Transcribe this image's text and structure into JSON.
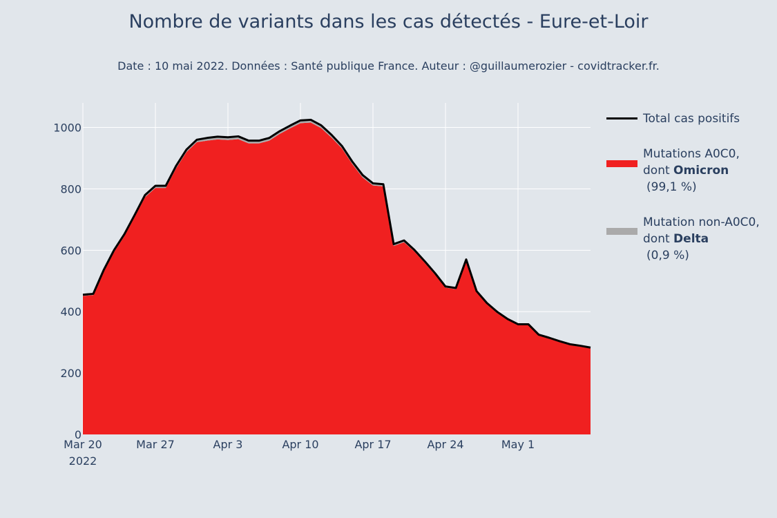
{
  "title": "Nombre de variants dans les cas détectés - Eure-et-Loir",
  "subtitle": "Date : 10 mai 2022. Données : Santé publique France. Auteur : @guillaumerozier - covidtracker.fr.",
  "colors": {
    "background": "#e1e6eb",
    "omicron": "#f02020",
    "delta": "#aaaaaa",
    "total": "#000000",
    "grid": "#ffffff",
    "text": "#2a3f5f"
  },
  "legend": {
    "total": {
      "label": "Total cas positifs"
    },
    "omicron": {
      "line1": "Mutations A0C0,",
      "line2_prefix": "dont ",
      "line2_bold": "Omicron",
      "line3": "(99,1 %)"
    },
    "delta": {
      "line1": "Mutation non-A0C0,",
      "line2_prefix": "dont ",
      "line2_bold": "Delta",
      "line3": "(0,9 %)"
    }
  },
  "chart_data": {
    "type": "area",
    "xlim": [
      "2022-03-20",
      "2022-05-08"
    ],
    "ylim": [
      0,
      1080
    ],
    "x_ticks": [
      {
        "date": "2022-03-20",
        "label": "Mar 20",
        "sublabel": "2022"
      },
      {
        "date": "2022-03-27",
        "label": "Mar 27"
      },
      {
        "date": "2022-04-03",
        "label": "Apr 3"
      },
      {
        "date": "2022-04-10",
        "label": "Apr 10"
      },
      {
        "date": "2022-04-17",
        "label": "Apr 17"
      },
      {
        "date": "2022-04-24",
        "label": "Apr 24"
      },
      {
        "date": "2022-05-01",
        "label": "May 1"
      }
    ],
    "y_ticks": [
      0,
      200,
      400,
      600,
      800,
      1000
    ],
    "grid": true,
    "legend_position": "right",
    "x": [
      "2022-03-20",
      "2022-03-21",
      "2022-03-22",
      "2022-03-23",
      "2022-03-24",
      "2022-03-25",
      "2022-03-26",
      "2022-03-27",
      "2022-03-28",
      "2022-03-29",
      "2022-03-30",
      "2022-03-31",
      "2022-04-01",
      "2022-04-02",
      "2022-04-03",
      "2022-04-04",
      "2022-04-05",
      "2022-04-06",
      "2022-04-07",
      "2022-04-08",
      "2022-04-09",
      "2022-04-10",
      "2022-04-11",
      "2022-04-12",
      "2022-04-13",
      "2022-04-14",
      "2022-04-15",
      "2022-04-16",
      "2022-04-17",
      "2022-04-18",
      "2022-04-19",
      "2022-04-20",
      "2022-04-21",
      "2022-04-22",
      "2022-04-23",
      "2022-04-24",
      "2022-04-25",
      "2022-04-26",
      "2022-04-27",
      "2022-04-28",
      "2022-04-29",
      "2022-04-30",
      "2022-05-01",
      "2022-05-02",
      "2022-05-03",
      "2022-05-04",
      "2022-05-05",
      "2022-05-06",
      "2022-05-07",
      "2022-05-08"
    ],
    "series": [
      {
        "name": "Total cas positifs",
        "values": [
          455,
          458,
          535,
          600,
          652,
          715,
          780,
          810,
          810,
          875,
          928,
          960,
          966,
          970,
          968,
          971,
          957,
          957,
          966,
          988,
          1006,
          1023,
          1025,
          1007,
          976,
          940,
          889,
          845,
          818,
          815,
          620,
          632,
          601,
          564,
          525,
          482,
          477,
          570,
          467,
          428,
          399,
          376,
          359,
          359,
          325,
          315,
          304,
          294,
          289,
          283
        ]
      },
      {
        "name": "Mutations A0C0, dont Omicron (99,1 %)",
        "values": [
          451,
          454,
          530,
          594,
          646,
          709,
          773,
          803,
          803,
          867,
          920,
          952,
          957,
          961,
          959,
          962,
          948,
          948,
          957,
          979,
          997,
          1014,
          1016,
          998,
          967,
          932,
          881,
          837,
          811,
          808,
          614,
          626,
          596,
          559,
          520,
          478,
          473,
          565,
          463,
          424,
          395,
          373,
          356,
          356,
          322,
          312,
          301,
          291,
          286,
          280
        ]
      },
      {
        "name": "Mutation non-A0C0, dont Delta (0,9 %)",
        "values": [
          4,
          4,
          5,
          6,
          6,
          6,
          7,
          7,
          7,
          8,
          8,
          8,
          9,
          9,
          9,
          9,
          9,
          9,
          9,
          9,
          9,
          9,
          9,
          9,
          9,
          8,
          8,
          8,
          7,
          7,
          6,
          6,
          5,
          5,
          5,
          4,
          4,
          5,
          4,
          4,
          4,
          3,
          3,
          3,
          3,
          3,
          3,
          3,
          3,
          3
        ]
      }
    ]
  }
}
